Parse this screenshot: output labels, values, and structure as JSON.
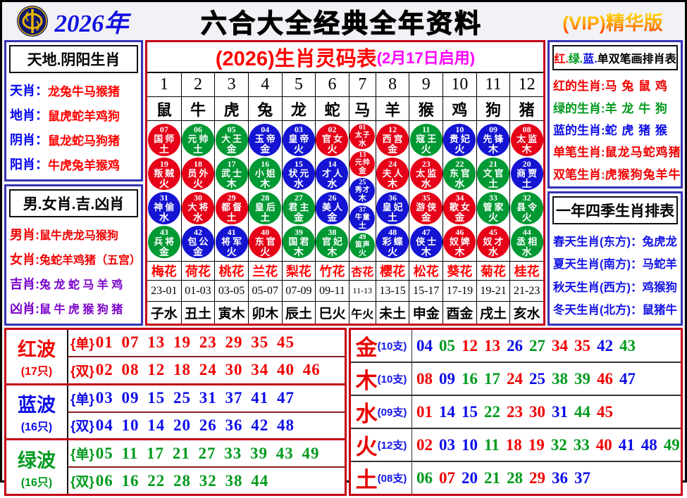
{
  "colors": {
    "red": "#f00000",
    "green": "#009a1e",
    "blue": "#0d0de8",
    "magenta": "#ff00ff",
    "purple": "#7a00c8",
    "circle_red": "#e60018",
    "circle_green": "#009933",
    "circle_blue": "#1414d2",
    "panel_border_navy": "#3434b4",
    "panel_border_red": "#c50016",
    "vip_gold": "#ffa500"
  },
  "header": {
    "year": "2026年",
    "title": "六合大全经典全年资料",
    "vip": "(VIP)精华版",
    "logo": "gold-coin-emblem"
  },
  "left_top": {
    "title": "天地.阴阳生肖",
    "rows": [
      {
        "label": "天肖：",
        "value": "龙兔牛马猴猪"
      },
      {
        "label": "地肖：",
        "value": "鼠虎蛇羊鸡狗"
      },
      {
        "label": "阴肖：",
        "value": "鼠龙蛇马狗猪"
      },
      {
        "label": "阳肖：",
        "value": "牛虎兔羊猴鸡"
      }
    ]
  },
  "left_bottom": {
    "title": "男.女肖.吉.凶肖",
    "rows": [
      {
        "label": "男肖:",
        "value": "鼠牛虎龙马猴狗",
        "color": "red"
      },
      {
        "label": "女肖:",
        "value": "兔蛇羊鸡猪（五宫）",
        "color": "red"
      },
      {
        "label": "吉肖:",
        "value": "兔 龙 蛇 马 羊 鸡",
        "color": "purple"
      },
      {
        "label": "凶肖:",
        "value": "鼠 牛 虎 猴 狗 猪",
        "color": "purple"
      }
    ]
  },
  "right_top": {
    "title_parts": [
      {
        "text": "红.",
        "color": "red"
      },
      {
        "text": "绿.",
        "color": "green"
      },
      {
        "text": "蓝.",
        "color": "blue"
      },
      {
        "text": "单双笔画排肖表",
        "color": "black"
      }
    ],
    "rows": [
      {
        "label": "红的生肖:",
        "value": "马 兔 鼠 鸡",
        "color": "red"
      },
      {
        "label": "绿的生肖:",
        "value": "羊 龙 牛 狗",
        "color": "green"
      },
      {
        "label": "蓝的生肖:",
        "value": "蛇 虎 猪 猴",
        "color": "blue"
      },
      {
        "label": "单笔生肖:",
        "value": "鼠龙马蛇鸡猪",
        "color": "red"
      },
      {
        "label": "双笔生肖:",
        "value": "虎猴狗兔羊牛",
        "color": "red"
      }
    ]
  },
  "right_bottom": {
    "title": "一年四季生肖排表",
    "rows": [
      {
        "label": "春天生肖(东方)：",
        "value": "兔虎龙"
      },
      {
        "label": "夏天生肖(南方)：",
        "value": "马蛇羊"
      },
      {
        "label": "秋天生肖(西方)：",
        "value": "鸡猴狗"
      },
      {
        "label": "冬天生肖(北方)：",
        "value": "鼠猪牛"
      }
    ]
  },
  "main_table": {
    "title_red": "(2026)生肖灵码表",
    "title_magenta": "(2月17日启用)",
    "columns": [
      {
        "no": "1",
        "animal": "鼠",
        "flower": "梅花",
        "time": "23-01",
        "branch": "子水",
        "circles": [
          [
            "07",
            "国师",
            "土",
            "red"
          ],
          [
            "19",
            "叛贼",
            "火",
            "red"
          ],
          [
            "31",
            "神偷",
            "水",
            "blue"
          ],
          [
            "43",
            "兵将",
            "金",
            "green"
          ]
        ]
      },
      {
        "no": "2",
        "animal": "牛",
        "flower": "荷花",
        "time": "01-03",
        "branch": "丑土",
        "circles": [
          [
            "06",
            "元帅",
            "土",
            "green"
          ],
          [
            "18",
            "员外",
            "火",
            "red"
          ],
          [
            "30",
            "大将",
            "水",
            "red"
          ],
          [
            "42",
            "包公",
            "金",
            "blue"
          ]
        ]
      },
      {
        "no": "3",
        "animal": "虎",
        "flower": "桃花",
        "time": "03-05",
        "branch": "寅木",
        "circles": [
          [
            "05",
            "大王",
            "金",
            "green"
          ],
          [
            "17",
            "武士",
            "木",
            "green"
          ],
          [
            "29",
            "都督",
            "土",
            "red"
          ],
          [
            "41",
            "将军",
            "火",
            "blue"
          ]
        ]
      },
      {
        "no": "4",
        "animal": "兔",
        "flower": "兰花",
        "time": "05-07",
        "branch": "卯木",
        "circles": [
          [
            "04",
            "玉帝",
            "金",
            "blue"
          ],
          [
            "16",
            "小姐",
            "木",
            "green"
          ],
          [
            "28",
            "皇后",
            "土",
            "green"
          ],
          [
            "40",
            "东官",
            "火",
            "red"
          ]
        ]
      },
      {
        "no": "5",
        "animal": "龙",
        "flower": "梨花",
        "time": "07-09",
        "branch": "辰土",
        "circles": [
          [
            "03",
            "皇帝",
            "火",
            "blue"
          ],
          [
            "15",
            "状元",
            "水",
            "blue"
          ],
          [
            "27",
            "君主",
            "金",
            "green"
          ],
          [
            "39",
            "国君",
            "木",
            "green"
          ]
        ]
      },
      {
        "no": "6",
        "animal": "蛇",
        "flower": "竹花",
        "time": "09-11",
        "branch": "巳火",
        "circles": [
          [
            "02",
            "官女",
            "火",
            "red"
          ],
          [
            "14",
            "才人",
            "水",
            "blue"
          ],
          [
            "26",
            "美人",
            "金",
            "blue"
          ],
          [
            "38",
            "官妃",
            "木",
            "green"
          ]
        ]
      },
      {
        "no": "7",
        "animal": "马",
        "flower": "杏花",
        "time": "11-13",
        "branch": "午火",
        "narrow": true,
        "circles": [
          [
            "01",
            "太子",
            "水",
            "red"
          ],
          [
            "13",
            "元帅",
            "金",
            "red"
          ],
          [
            "25",
            "秀才",
            "木",
            "blue"
          ],
          [
            "37",
            "牛童",
            "土",
            "blue"
          ],
          [
            "49",
            "笛声",
            "火",
            "green"
          ]
        ]
      },
      {
        "no": "8",
        "animal": "羊",
        "flower": "樱花",
        "time": "13-15",
        "branch": "未土",
        "circles": [
          [
            "12",
            "西宫",
            "金",
            "red"
          ],
          [
            "24",
            "夫人",
            "木",
            "red"
          ],
          [
            "36",
            "皇妃",
            "土",
            "blue"
          ],
          [
            "48",
            "彩蝶",
            "火",
            "blue"
          ]
        ]
      },
      {
        "no": "9",
        "animal": "猴",
        "flower": "松花",
        "time": "15-17",
        "branch": "申金",
        "circles": [
          [
            "11",
            "寇王",
            "火",
            "green"
          ],
          [
            "23",
            "太监",
            "水",
            "red"
          ],
          [
            "35",
            "游侠",
            "金",
            "red"
          ],
          [
            "47",
            "侠士",
            "木",
            "blue"
          ]
        ]
      },
      {
        "no": "10",
        "animal": "鸡",
        "flower": "葵花",
        "time": "17-19",
        "branch": "酉金",
        "circles": [
          [
            "10",
            "贵妃",
            "火",
            "blue"
          ],
          [
            "22",
            "东官",
            "水",
            "green"
          ],
          [
            "34",
            "歌女",
            "金",
            "red"
          ],
          [
            "46",
            "奴婢",
            "木",
            "red"
          ]
        ]
      },
      {
        "no": "11",
        "animal": "狗",
        "flower": "菊花",
        "time": "19-21",
        "branch": "戌土",
        "circles": [
          [
            "09",
            "先锋",
            "木",
            "blue"
          ],
          [
            "21",
            "文官",
            "土",
            "green"
          ],
          [
            "33",
            "管家",
            "火",
            "green"
          ],
          [
            "45",
            "奴才",
            "水",
            "red"
          ]
        ]
      },
      {
        "no": "12",
        "animal": "猪",
        "flower": "桂花",
        "time": "21-23",
        "branch": "亥水",
        "circles": [
          [
            "08",
            "太监",
            "木",
            "red"
          ],
          [
            "20",
            "商贾",
            "土",
            "blue"
          ],
          [
            "32",
            "县令",
            "火",
            "green"
          ],
          [
            "44",
            "丞相",
            "水",
            "green"
          ]
        ]
      }
    ]
  },
  "wave_labels": {
    "odd": "{单}",
    "even": "{双}"
  },
  "waves": [
    {
      "name": "红波",
      "count": "(17只)",
      "color": "red",
      "odd": "01 07 13 19 23 29 35 45",
      "even": "02 08 12 18 24 30 34 40 46"
    },
    {
      "name": "蓝波",
      "count": "(16只)",
      "color": "blue",
      "odd": "03 09 15 25 31 37 41 47",
      "even": "04 10 14 20 26 36 42 48"
    },
    {
      "name": "绿波",
      "count": "(16只)",
      "color": "green",
      "odd": "05 11 17 21 27 33 39 43 49",
      "even": "06 16 22 28 32 38 44"
    }
  ],
  "elements": [
    {
      "name": "金",
      "count": "(10支)",
      "numbers": [
        [
          "04",
          "blue"
        ],
        [
          "05",
          "green"
        ],
        [
          "12",
          "red"
        ],
        [
          "13",
          "red"
        ],
        [
          "26",
          "blue"
        ],
        [
          "27",
          "green"
        ],
        [
          "34",
          "red"
        ],
        [
          "35",
          "red"
        ],
        [
          "42",
          "blue"
        ],
        [
          "43",
          "green"
        ]
      ]
    },
    {
      "name": "木",
      "count": "(10支)",
      "numbers": [
        [
          "08",
          "red"
        ],
        [
          "09",
          "blue"
        ],
        [
          "16",
          "green"
        ],
        [
          "17",
          "green"
        ],
        [
          "24",
          "red"
        ],
        [
          "25",
          "blue"
        ],
        [
          "38",
          "green"
        ],
        [
          "39",
          "green"
        ],
        [
          "46",
          "red"
        ],
        [
          "47",
          "blue"
        ]
      ]
    },
    {
      "name": "水",
      "count": "(09支)",
      "numbers": [
        [
          "01",
          "red"
        ],
        [
          "14",
          "blue"
        ],
        [
          "15",
          "blue"
        ],
        [
          "22",
          "green"
        ],
        [
          "23",
          "red"
        ],
        [
          "30",
          "red"
        ],
        [
          "31",
          "blue"
        ],
        [
          "44",
          "green"
        ],
        [
          "45",
          "red"
        ]
      ]
    },
    {
      "name": "火",
      "count": "(12支)",
      "numbers": [
        [
          "02",
          "red"
        ],
        [
          "03",
          "blue"
        ],
        [
          "10",
          "blue"
        ],
        [
          "11",
          "green"
        ],
        [
          "18",
          "red"
        ],
        [
          "19",
          "red"
        ],
        [
          "32",
          "green"
        ],
        [
          "33",
          "green"
        ],
        [
          "40",
          "red"
        ],
        [
          "41",
          "blue"
        ],
        [
          "48",
          "blue"
        ],
        [
          "49",
          "green"
        ]
      ]
    },
    {
      "name": "土",
      "count": "(08支)",
      "numbers": [
        [
          "06",
          "green"
        ],
        [
          "07",
          "red"
        ],
        [
          "20",
          "blue"
        ],
        [
          "21",
          "green"
        ],
        [
          "28",
          "green"
        ],
        [
          "29",
          "red"
        ],
        [
          "36",
          "blue"
        ],
        [
          "37",
          "blue"
        ]
      ]
    }
  ]
}
